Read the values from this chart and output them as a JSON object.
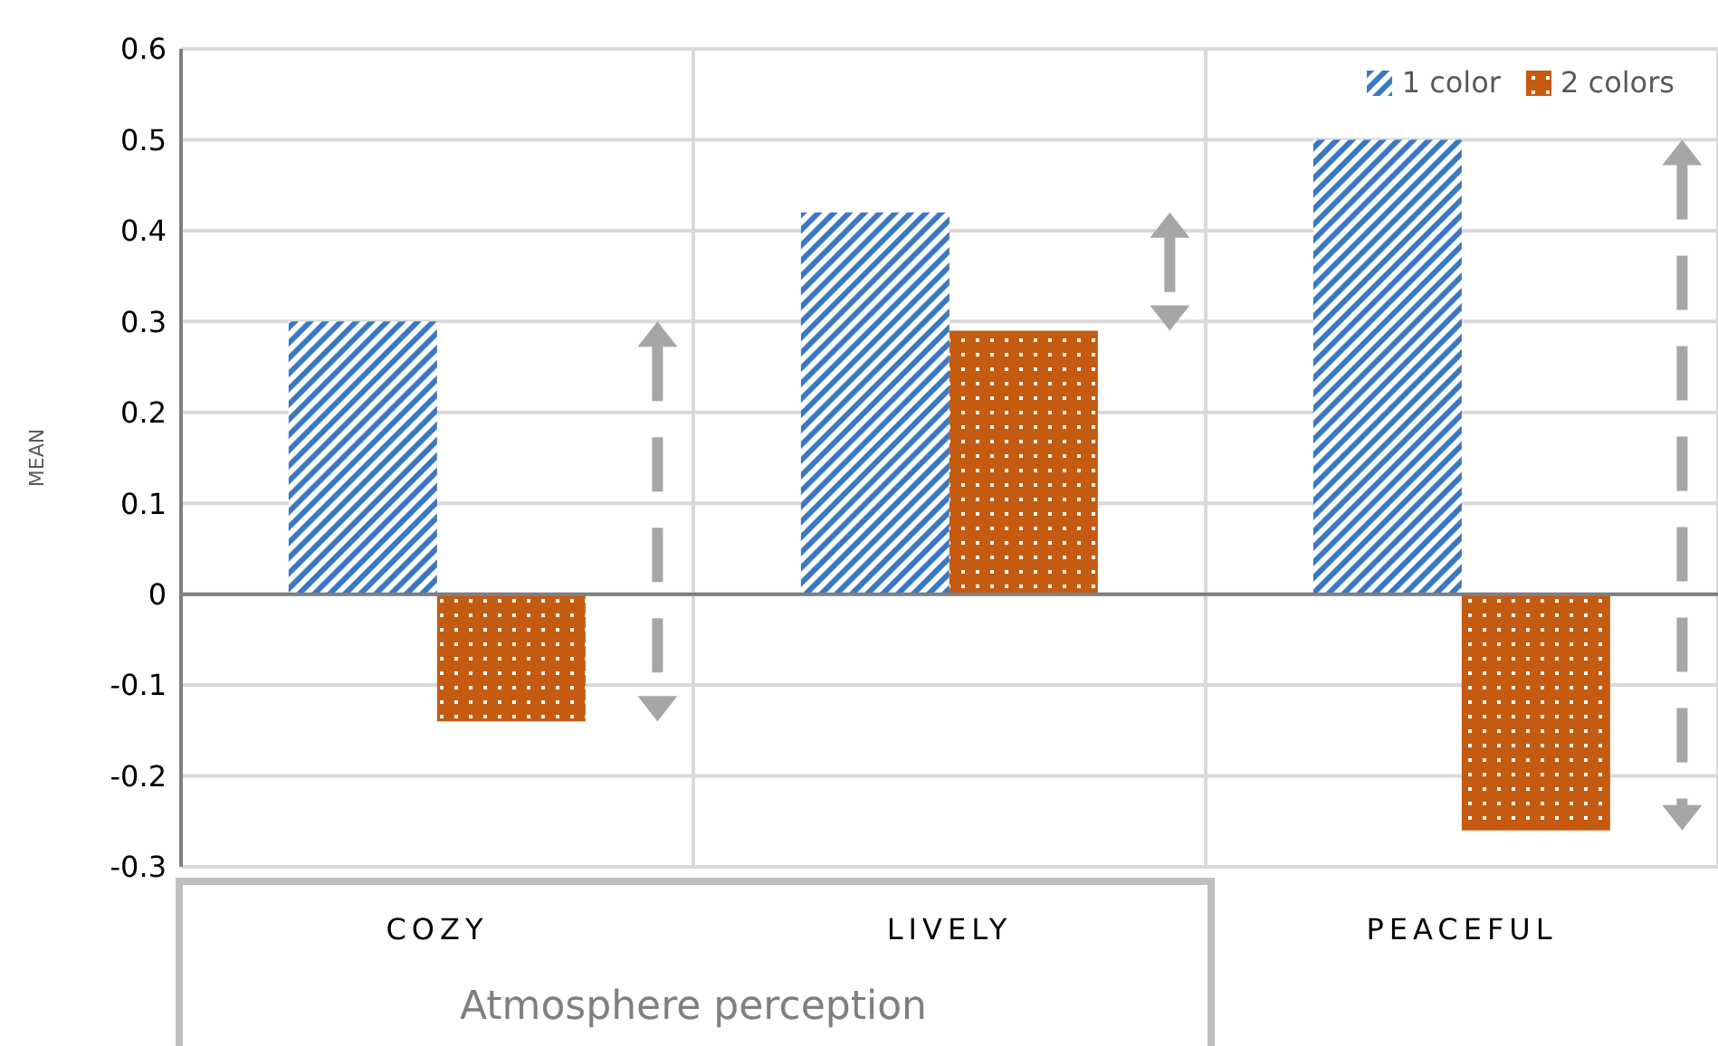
{
  "chart_data": {
    "type": "bar",
    "xlabel": "Atmosphere perception",
    "ylabel": "MEAN",
    "categories": [
      "COZY",
      "LIVELY",
      "PEACEFUL"
    ],
    "series": [
      {
        "name": "1 color",
        "color": "#3a78c3",
        "values": [
          0.3,
          0.42,
          0.5
        ]
      },
      {
        "name": "2 colors",
        "color": "#c55a11",
        "values": [
          -0.14,
          0.29,
          -0.26
        ]
      }
    ],
    "ylim": [
      -0.3,
      0.6
    ],
    "yticks": [
      -0.3,
      -0.2,
      -0.1,
      0,
      0.1,
      0.2,
      0.3,
      0.4,
      0.5,
      0.6
    ],
    "grid": true,
    "legend": "top right",
    "ref_lines": [
      {
        "axis": "y",
        "value": 0,
        "color": "#7f7f7f"
      }
    ]
  }
}
